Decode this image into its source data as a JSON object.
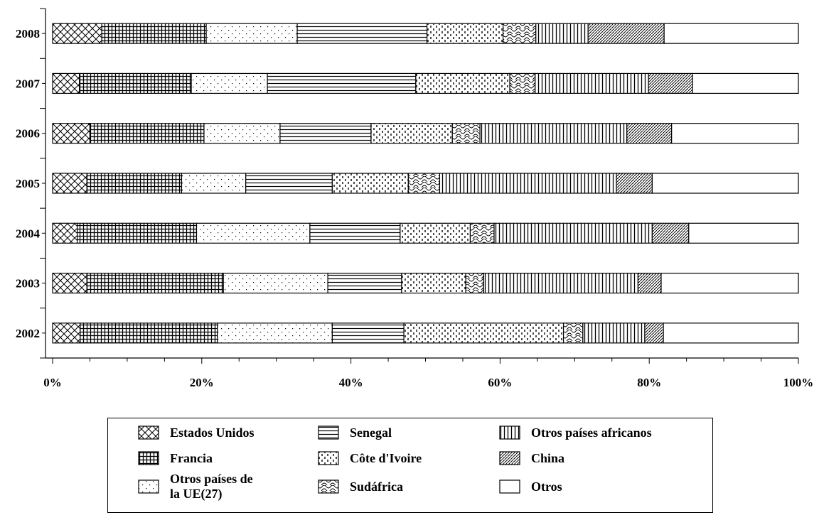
{
  "chart_data": {
    "type": "bar",
    "orientation": "horizontal",
    "stacked": "percent",
    "categories": [
      "2008",
      "2007",
      "2006",
      "2005",
      "2004",
      "2003",
      "2002"
    ],
    "xlim": [
      0,
      100
    ],
    "x_ticks": [
      "0%",
      "20%",
      "40%",
      "60%",
      "80%",
      "100%"
    ],
    "grid": false,
    "legend_position": "bottom",
    "series": [
      {
        "name": "Estados Unidos",
        "pattern": "diagonal-cross",
        "values": [
          6.6,
          3.6,
          5.0,
          4.6,
          3.3,
          4.6,
          3.7
        ]
      },
      {
        "name": "Francia",
        "pattern": "grid",
        "values": [
          14.0,
          15.0,
          15.3,
          12.7,
          16.0,
          18.3,
          18.4
        ]
      },
      {
        "name": "Otros países de\nla UE(27)",
        "pattern": "dots",
        "values": [
          12.2,
          10.2,
          10.2,
          8.6,
          15.2,
          14.0,
          15.4
        ]
      },
      {
        "name": "Senegal",
        "pattern": "horizontal-lines",
        "values": [
          17.4,
          19.9,
          12.2,
          11.6,
          12.1,
          9.9,
          9.6
        ]
      },
      {
        "name": "Côte d'Ivoire",
        "pattern": "dashed-vertical",
        "values": [
          10.2,
          12.6,
          10.9,
          10.2,
          9.4,
          8.6,
          21.4
        ]
      },
      {
        "name": "Sudáfrica",
        "pattern": "wave",
        "values": [
          4.4,
          3.4,
          3.7,
          4.2,
          3.2,
          2.4,
          2.6
        ]
      },
      {
        "name": "Otros países africanos",
        "pattern": "vertical-lines",
        "values": [
          7.0,
          15.2,
          19.7,
          23.7,
          21.2,
          20.7,
          8.3
        ]
      },
      {
        "name": "China",
        "pattern": "diagonal-lines",
        "values": [
          10.2,
          5.9,
          6.0,
          4.8,
          4.9,
          3.1,
          2.5
        ]
      },
      {
        "name": "Otros",
        "pattern": "blank",
        "values": [
          18.0,
          14.2,
          17.0,
          19.6,
          14.7,
          18.4,
          18.1
        ]
      }
    ]
  }
}
